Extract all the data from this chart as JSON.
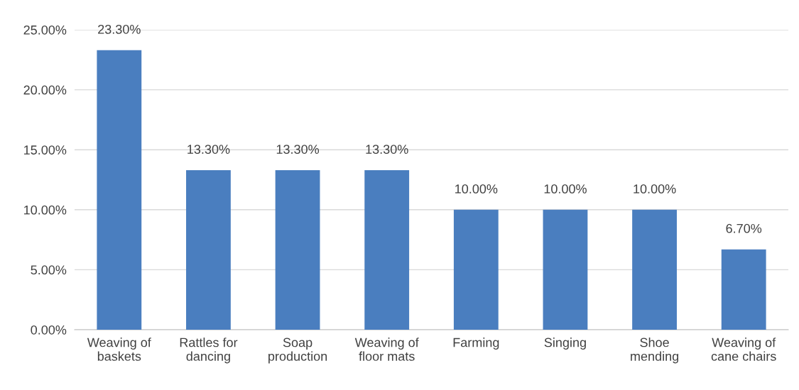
{
  "chart_data": {
    "type": "bar",
    "categories": [
      "Weaving of\nbaskets",
      "Rattles for\ndancing",
      "Soap\nproduction",
      "Weaving of\nfloor mats",
      "Farming",
      "Singing",
      "Shoe\nmending",
      "Weaving of\ncane chairs"
    ],
    "values": [
      23.3,
      13.3,
      13.3,
      13.3,
      10.0,
      10.0,
      10.0,
      6.7
    ],
    "value_labels": [
      "23.30%",
      "13.30%",
      "13.30%",
      "13.30%",
      "10.00%",
      "10.00%",
      "10.00%",
      "6.70%"
    ],
    "color": "#4a7ebf",
    "ylim": [
      0,
      25
    ],
    "yticks": [
      {
        "value": 0,
        "label": "0.00%"
      },
      {
        "value": 5,
        "label": "5.00%"
      },
      {
        "value": 10,
        "label": "10.00%"
      },
      {
        "value": 15,
        "label": "15.00%"
      },
      {
        "value": 20,
        "label": "20.00%"
      },
      {
        "value": 25,
        "label": "25.00%"
      }
    ],
    "grid": "y"
  }
}
